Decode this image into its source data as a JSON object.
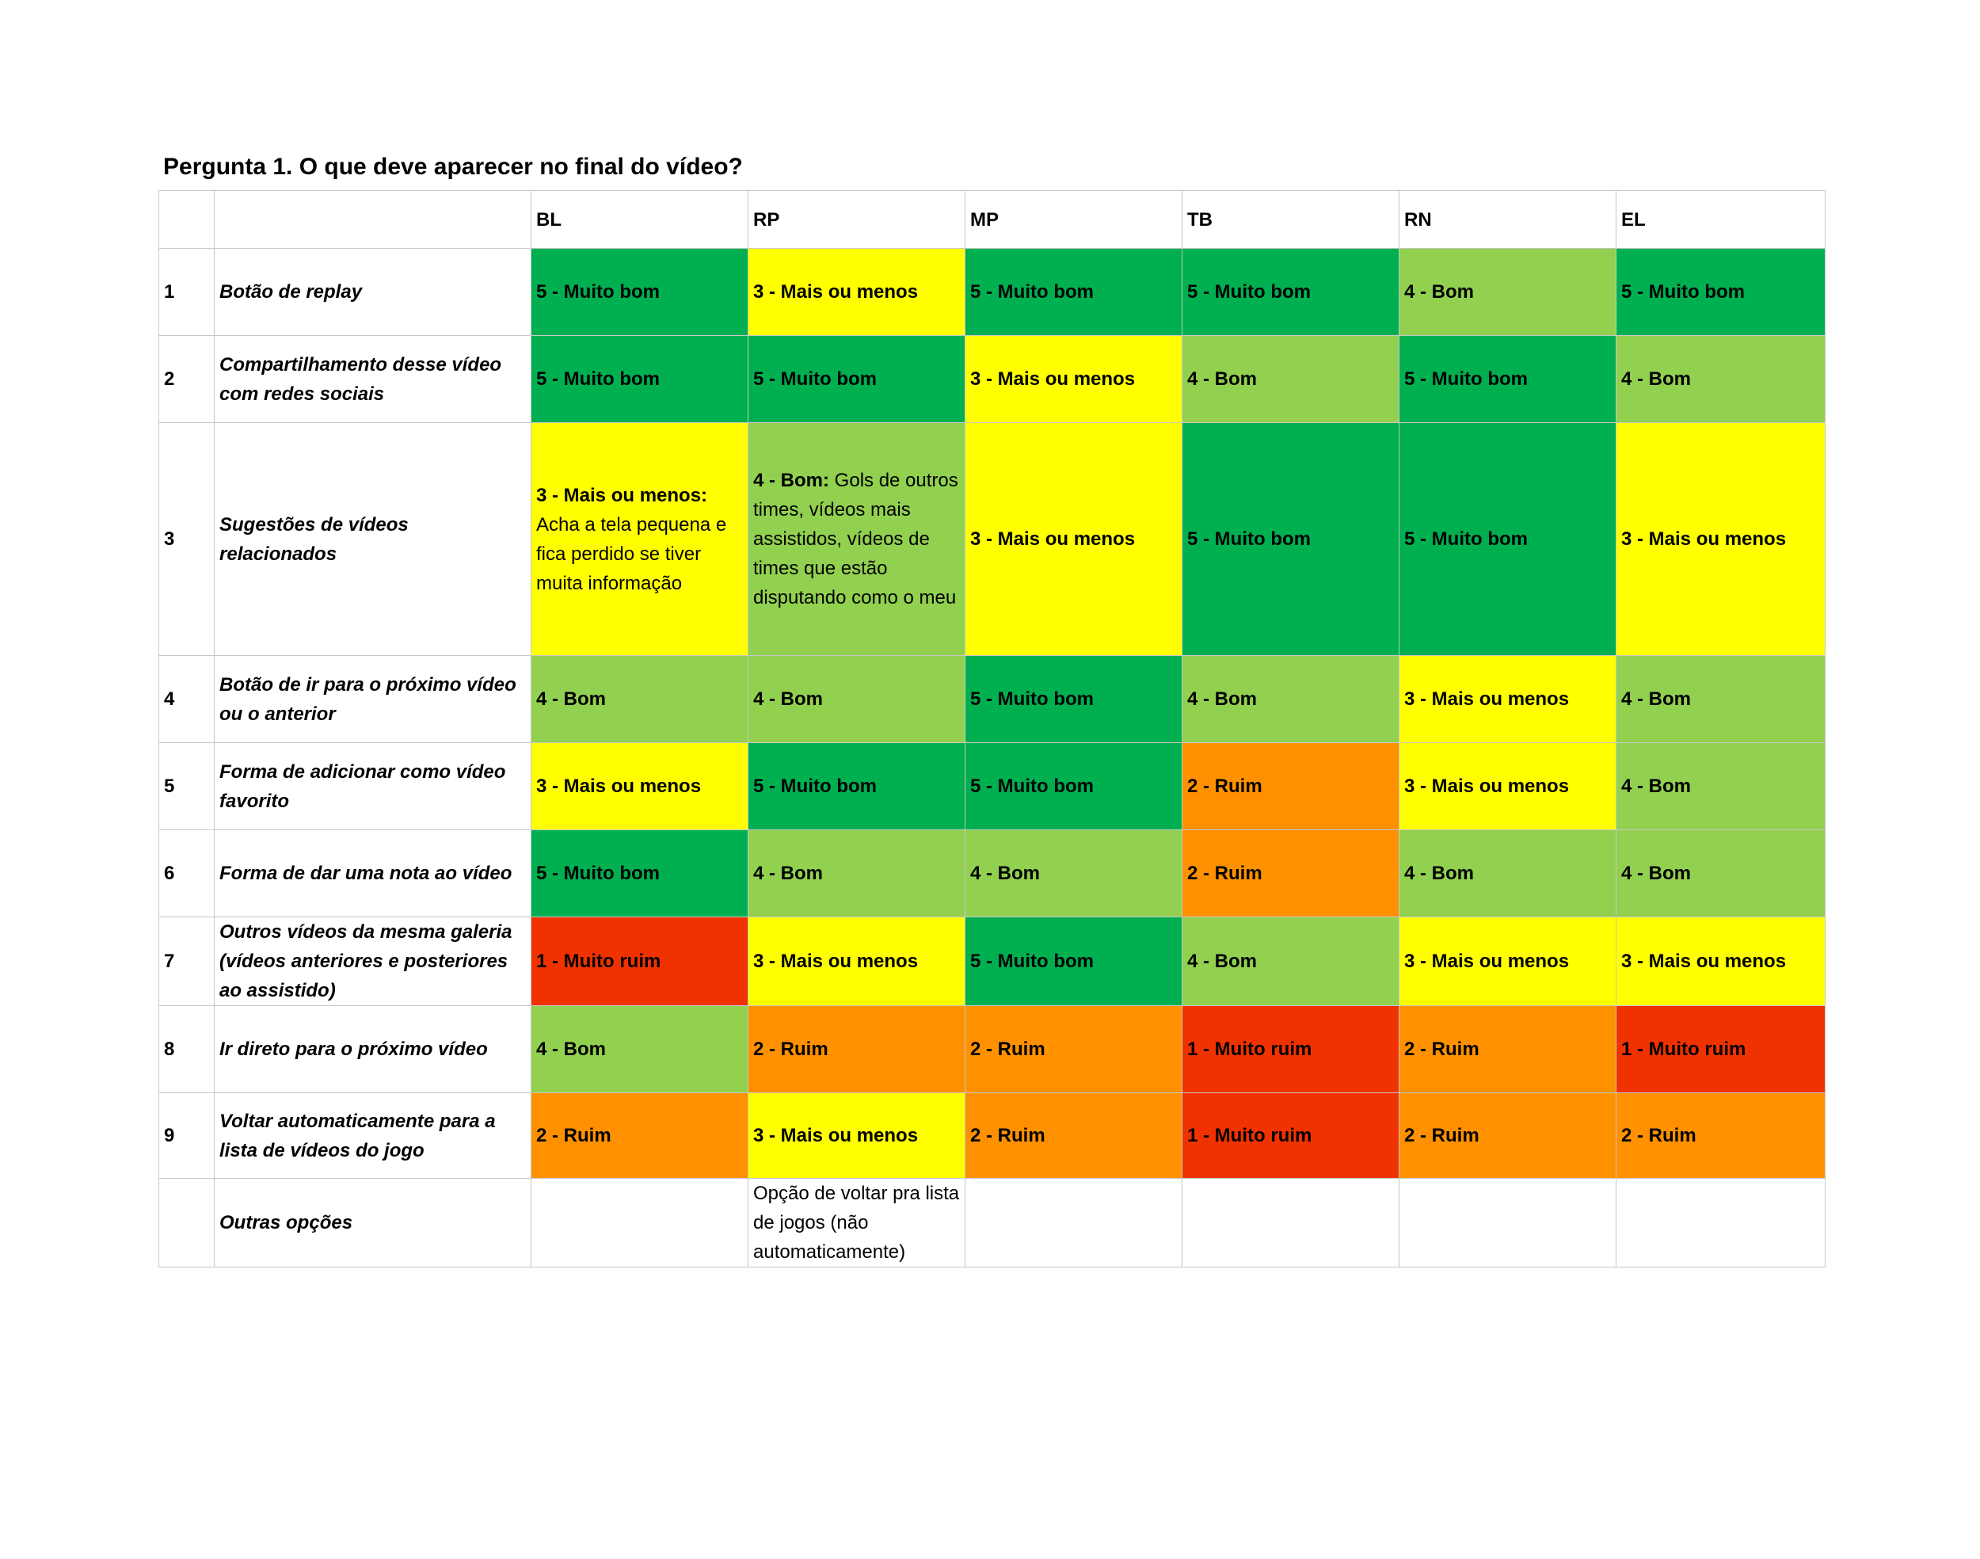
{
  "title": "Pergunta 1. O que deve aparecer no final do vídeo?",
  "colors": {
    "5": "#00b050",
    "4": "#92d050",
    "3": "#ffff00",
    "2": "#ff9100",
    "1": "#f03200"
  },
  "columns": [
    "BL",
    "RP",
    "MP",
    "TB",
    "RN",
    "EL"
  ],
  "rows": [
    {
      "num": "1",
      "question": "Botão de replay",
      "cells": [
        {
          "score": 5,
          "label": "5 - Muito bom",
          "note": ""
        },
        {
          "score": 3,
          "label": "3 - Mais ou menos",
          "note": ""
        },
        {
          "score": 5,
          "label": "5 - Muito bom",
          "note": ""
        },
        {
          "score": 5,
          "label": "5 - Muito bom",
          "note": ""
        },
        {
          "score": 4,
          "label": "4 - Bom",
          "note": ""
        },
        {
          "score": 5,
          "label": "5 - Muito bom",
          "note": ""
        }
      ]
    },
    {
      "num": "2",
      "question": "Compartilhamento desse vídeo com redes sociais",
      "cells": [
        {
          "score": 5,
          "label": "5 - Muito bom",
          "note": ""
        },
        {
          "score": 5,
          "label": "5 - Muito bom",
          "note": ""
        },
        {
          "score": 3,
          "label": "3 - Mais ou menos",
          "note": ""
        },
        {
          "score": 4,
          "label": "4 - Bom",
          "note": ""
        },
        {
          "score": 5,
          "label": "5 - Muito bom",
          "note": ""
        },
        {
          "score": 4,
          "label": "4 - Bom",
          "note": ""
        }
      ]
    },
    {
      "num": "3",
      "question": "Sugestões de vídeos relacionados",
      "cells": [
        {
          "score": 3,
          "label": "3 - Mais ou menos:",
          "note": "Acha a tela pequena e fica perdido se tiver muita informação"
        },
        {
          "score": 4,
          "label": "4 - Bom:",
          "note": "Gols de outros times, vídeos mais assistidos, vídeos de times que estão disputando como o meu"
        },
        {
          "score": 3,
          "label": "3 - Mais ou menos",
          "note": ""
        },
        {
          "score": 5,
          "label": "5 - Muito bom",
          "note": ""
        },
        {
          "score": 5,
          "label": "5 - Muito bom",
          "note": ""
        },
        {
          "score": 3,
          "label": "3 - Mais ou menos",
          "note": ""
        }
      ]
    },
    {
      "num": "4",
      "question": "Botão de ir para o próximo vídeo ou o anterior",
      "cells": [
        {
          "score": 4,
          "label": "4 - Bom",
          "note": ""
        },
        {
          "score": 4,
          "label": "4 - Bom",
          "note": ""
        },
        {
          "score": 5,
          "label": "5 - Muito bom",
          "note": ""
        },
        {
          "score": 4,
          "label": "4 - Bom",
          "note": ""
        },
        {
          "score": 3,
          "label": "3 - Mais ou menos",
          "note": ""
        },
        {
          "score": 4,
          "label": "4 - Bom",
          "note": ""
        }
      ]
    },
    {
      "num": "5",
      "question": "Forma de adicionar como vídeo favorito",
      "cells": [
        {
          "score": 3,
          "label": "3 - Mais ou menos",
          "note": ""
        },
        {
          "score": 5,
          "label": "5 - Muito bom",
          "note": ""
        },
        {
          "score": 5,
          "label": "5 - Muito bom",
          "note": ""
        },
        {
          "score": 2,
          "label": "2 - Ruim",
          "note": ""
        },
        {
          "score": 3,
          "label": "3 - Mais ou menos",
          "note": ""
        },
        {
          "score": 4,
          "label": "4 - Bom",
          "note": ""
        }
      ]
    },
    {
      "num": "6",
      "question": "Forma de dar uma nota ao vídeo",
      "cells": [
        {
          "score": 5,
          "label": "5 - Muito bom",
          "note": ""
        },
        {
          "score": 4,
          "label": "4 - Bom",
          "note": ""
        },
        {
          "score": 4,
          "label": "4 - Bom",
          "note": ""
        },
        {
          "score": 2,
          "label": "2 - Ruim",
          "note": ""
        },
        {
          "score": 4,
          "label": "4 - Bom",
          "note": ""
        },
        {
          "score": 4,
          "label": "4 - Bom",
          "note": ""
        }
      ]
    },
    {
      "num": "7",
      "question": "Outros vídeos da mesma galeria (vídeos anteriores e posteriores ao assistido)",
      "cells": [
        {
          "score": 1,
          "label": "1 - Muito ruim",
          "note": ""
        },
        {
          "score": 3,
          "label": "3 - Mais ou menos",
          "note": ""
        },
        {
          "score": 5,
          "label": "5 - Muito bom",
          "note": ""
        },
        {
          "score": 4,
          "label": "4 - Bom",
          "note": ""
        },
        {
          "score": 3,
          "label": "3 - Mais ou menos",
          "note": ""
        },
        {
          "score": 3,
          "label": "3 - Mais ou menos",
          "note": ""
        }
      ]
    },
    {
      "num": "8",
      "question": "Ir direto para o próximo vídeo",
      "cells": [
        {
          "score": 4,
          "label": "4 -  Bom",
          "note": ""
        },
        {
          "score": 2,
          "label": "2 - Ruim",
          "note": ""
        },
        {
          "score": 2,
          "label": "2 - Ruim",
          "note": ""
        },
        {
          "score": 1,
          "label": "1 - Muito ruim",
          "note": ""
        },
        {
          "score": 2,
          "label": "2 - Ruim",
          "note": ""
        },
        {
          "score": 1,
          "label": "1 - Muito ruim",
          "note": ""
        }
      ]
    },
    {
      "num": "9",
      "question": "Voltar automaticamente para a lista de vídeos do jogo",
      "cells": [
        {
          "score": 2,
          "label": "2 - Ruim",
          "note": ""
        },
        {
          "score": 3,
          "label": "3 - Mais ou menos",
          "note": ""
        },
        {
          "score": 2,
          "label": "2 - Ruim",
          "note": ""
        },
        {
          "score": 1,
          "label": "1 - Muito ruim",
          "note": ""
        },
        {
          "score": 2,
          "label": "2 - Ruim",
          "note": ""
        },
        {
          "score": 2,
          "label": "2 - Ruim",
          "note": ""
        }
      ]
    }
  ],
  "other": {
    "question": "Outras opções",
    "cells": [
      "",
      "Opção de voltar pra lista de jogos (não automaticamente)",
      "",
      "",
      "",
      ""
    ]
  }
}
